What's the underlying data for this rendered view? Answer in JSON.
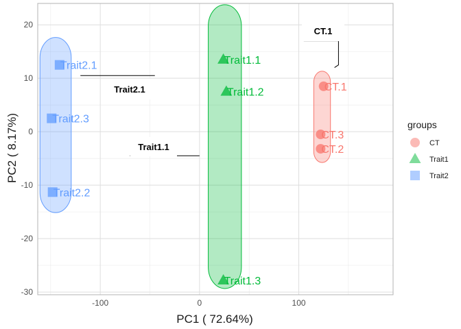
{
  "chart_data": {
    "type": "scatter",
    "xlabel": "PC1 ( 72.64%)",
    "ylabel": "PC2 ( 8.17%)",
    "xlim": [
      -163,
      195
    ],
    "ylim": [
      -30.5,
      24
    ],
    "x_ticks": [
      -100,
      0,
      100
    ],
    "y_ticks": [
      20,
      10,
      0,
      -10,
      -20,
      -30
    ],
    "grid": true,
    "legend": {
      "title": "groups",
      "position": "right",
      "entries": [
        {
          "label": "CT",
          "shape": "circle",
          "color": "#F8766D"
        },
        {
          "label": "Trait1",
          "shape": "triangle",
          "color": "#00BA38"
        },
        {
          "label": "Trait2",
          "shape": "square",
          "color": "#619CFF"
        }
      ]
    },
    "series": [
      {
        "name": "CT",
        "color": "#F8766D",
        "shape": "circle",
        "points": [
          {
            "label": "CT.1",
            "x": 125,
            "y": 8.5
          },
          {
            "label": "CT.3",
            "x": 122,
            "y": -0.5
          },
          {
            "label": "CT.2",
            "x": 122,
            "y": -3.2
          }
        ]
      },
      {
        "name": "Trait1",
        "color": "#00BA38",
        "shape": "triangle",
        "points": [
          {
            "label": "Trait1.1",
            "x": 24,
            "y": 13.5
          },
          {
            "label": "Trait1.2",
            "x": 27,
            "y": 7.5
          },
          {
            "label": "Trait1.3",
            "x": 24,
            "y": -27.8
          }
        ]
      },
      {
        "name": "Trait2",
        "color": "#619CFF",
        "shape": "square",
        "points": [
          {
            "label": "Trait2.1",
            "x": -141,
            "y": 12.5
          },
          {
            "label": "Trait2.3",
            "x": -149,
            "y": 2.5
          },
          {
            "label": "Trait2.2",
            "x": -148,
            "y": -11.3
          }
        ]
      }
    ],
    "annotations": [
      {
        "text": "CT.1",
        "leader": [
          [
            105,
            17
          ],
          [
            140,
            17
          ],
          [
            140,
            12.5
          ],
          [
            136,
            12
          ]
        ]
      },
      {
        "text": "Trait2.1",
        "leader": [
          [
            -120,
            10.5
          ],
          [
            -45,
            10.5
          ]
        ]
      },
      {
        "text": "Trait1.1",
        "leader": [
          [
            -70,
            -4.5
          ],
          [
            0,
            -4.5
          ]
        ]
      }
    ]
  }
}
